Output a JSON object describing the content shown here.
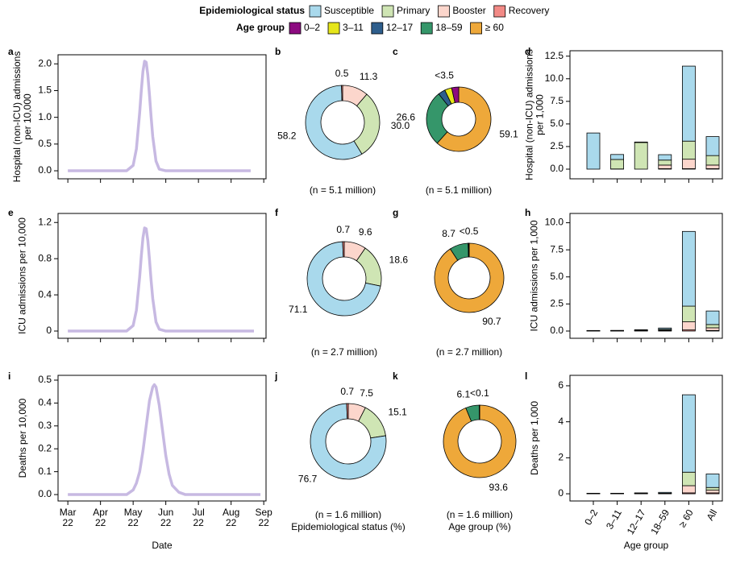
{
  "legend": {
    "epidemiological": {
      "title": "Epidemiological status",
      "items": [
        {
          "name": "Susceptible",
          "color": "#a9d9ec"
        },
        {
          "name": "Primary",
          "color": "#cfe5b4"
        },
        {
          "name": "Booster",
          "color": "#fcd6cc"
        },
        {
          "name": "Recovery",
          "color": "#f28a86"
        }
      ]
    },
    "age": {
      "title": "Age group",
      "items": [
        {
          "name": "0–2",
          "color": "#8c0a80"
        },
        {
          "name": "3–11",
          "color": "#e6e61a"
        },
        {
          "name": "12–17",
          "color": "#2e5e8c"
        },
        {
          "name": "18–59",
          "color": "#35966a"
        },
        {
          "name": "≥ 60",
          "color": "#eea83a"
        }
      ]
    }
  },
  "chart_data": [
    {
      "type": "line",
      "panel_label": "a",
      "ylabel": "Hospital (non-ICU) admissions\nper 10,000",
      "color": "#c7b9e2",
      "x": [
        3.0,
        3.5,
        4.0,
        4.5,
        4.8,
        5.0,
        5.1,
        5.2,
        5.25,
        5.3,
        5.35,
        5.4,
        5.45,
        5.5,
        5.55,
        5.6,
        5.7,
        5.8,
        6.0,
        6.5,
        7.0,
        7.5,
        8.0,
        8.6
      ],
      "values": [
        0,
        0,
        0,
        0,
        0,
        0.1,
        0.41,
        1.09,
        1.5,
        1.86,
        2.05,
        2.03,
        1.79,
        1.42,
        1.01,
        0.64,
        0.18,
        0.03,
        0,
        0,
        0,
        0,
        0,
        0
      ],
      "xlim": [
        2.7,
        9.07
      ],
      "ylim": [
        -0.15,
        2.17
      ],
      "xticks": [
        3,
        4,
        5,
        6,
        7,
        8,
        9
      ],
      "yticks": [
        {
          "value": 0,
          "label": "0.0"
        },
        0.5,
        {
          "value": 1,
          "label": "1.0"
        },
        1.5,
        {
          "value": 2,
          "label": "2.0"
        }
      ]
    },
    {
      "type": "donut",
      "panel_label": "b",
      "group": "epidemiological",
      "values": [
        58.2,
        30.0,
        11.3,
        0.5
      ],
      "value_labels": [
        "58.2",
        "30.0",
        "11.3",
        "0.5"
      ],
      "note": "(n = 5.1 million)"
    },
    {
      "type": "donut",
      "panel_label": "c",
      "group": "age",
      "values": [
        3.4,
        3.4,
        3.4,
        26.6,
        59.1
      ],
      "value_labels": [
        "<3.5",
        null,
        null,
        "26.6",
        "59.1"
      ],
      "note": "(n = 5.1 million)"
    },
    {
      "type": "bar",
      "panel_label": "d",
      "group": "epidemiological",
      "ylabel": "Hospital (non-ICU) admissions\nper 1,000",
      "ylim": [
        -1.07,
        13.1
      ],
      "yticks": [
        {
          "value": 0,
          "label": "0.0"
        },
        2.5,
        {
          "value": 5,
          "label": "5.0"
        },
        7.5,
        {
          "value": 10,
          "label": "10.0"
        },
        12.5
      ],
      "series": [
        {
          "values": [
            4.0,
            0.55,
            0.05,
            0.6,
            8.3,
            2.1
          ]
        },
        {
          "values": [
            0,
            1.05,
            2.95,
            0.55,
            2.0,
            1.05
          ]
        },
        {
          "values": [
            0,
            0.02,
            0,
            0.4,
            1.05,
            0.4
          ]
        },
        {
          "values": [
            0,
            0,
            0,
            0.05,
            0.05,
            0.05
          ]
        }
      ]
    },
    {
      "type": "line",
      "panel_label": "e",
      "ylabel": "ICU admissions per 10,000",
      "color": "#c7b9e2",
      "x": [
        3.0,
        3.5,
        4.0,
        4.5,
        4.8,
        5.0,
        5.1,
        5.2,
        5.25,
        5.3,
        5.35,
        5.4,
        5.45,
        5.5,
        5.55,
        5.6,
        5.7,
        5.8,
        6.0,
        6.5,
        7.0,
        7.5,
        8.0,
        8.7
      ],
      "values": [
        0,
        0,
        0,
        0,
        0,
        0.06,
        0.23,
        0.6,
        0.83,
        1.03,
        1.14,
        1.13,
        1.0,
        0.79,
        0.56,
        0.36,
        0.1,
        0.02,
        0,
        0,
        0,
        0,
        0,
        0
      ],
      "xlim": [
        2.7,
        9.07
      ],
      "ylim": [
        -0.08,
        1.3
      ],
      "xticks": [
        3,
        4,
        5,
        6,
        7,
        8,
        9
      ],
      "yticks": [
        0,
        0.4,
        0.8,
        1.2
      ]
    },
    {
      "type": "donut",
      "panel_label": "f",
      "group": "epidemiological",
      "values": [
        71.1,
        18.6,
        9.6,
        0.7
      ],
      "value_labels": [
        "71.1",
        "18.6",
        "9.6",
        "0.7"
      ],
      "note": "(n = 2.7 million)"
    },
    {
      "type": "donut",
      "panel_label": "g",
      "group": "age",
      "values": [
        0.2,
        0.1,
        0.2,
        8.7,
        90.7
      ],
      "value_labels": [
        "<0.5",
        null,
        null,
        "8.7",
        "90.7"
      ],
      "note": "(n = 2.7 million)"
    },
    {
      "type": "bar",
      "panel_label": "h",
      "group": "epidemiological",
      "ylabel": "ICU admissions per 1,000",
      "ylim": [
        -0.67,
        10.86
      ],
      "yticks": [
        {
          "value": 0,
          "label": "0.0"
        },
        2.5,
        {
          "value": 5,
          "label": "5.0"
        },
        7.5,
        {
          "value": 10,
          "label": "10.0"
        }
      ],
      "series": [
        {
          "values": [
            0.03,
            0.03,
            0.06,
            0.12,
            6.9,
            1.25
          ]
        },
        {
          "values": [
            0.01,
            0.02,
            0.04,
            0.08,
            1.45,
            0.3
          ]
        },
        {
          "values": [
            0.01,
            0.01,
            0.02,
            0.06,
            0.75,
            0.25
          ]
        },
        {
          "values": [
            0,
            0,
            0,
            0.02,
            0.1,
            0.05
          ]
        }
      ]
    },
    {
      "type": "line",
      "panel_label": "i",
      "ylabel": "Deaths per 10,000",
      "xlabel": "Date",
      "color": "#c7b9e2",
      "x": [
        3.0,
        3.5,
        4.0,
        4.5,
        4.8,
        5.0,
        5.1,
        5.2,
        5.3,
        5.4,
        5.5,
        5.6,
        5.65,
        5.7,
        5.8,
        5.9,
        6.0,
        6.1,
        6.2,
        6.4,
        6.6,
        7.0,
        7.5,
        8.0,
        8.5,
        8.9
      ],
      "values": [
        0,
        0,
        0,
        0,
        0,
        0.02,
        0.05,
        0.1,
        0.19,
        0.3,
        0.41,
        0.47,
        0.48,
        0.47,
        0.39,
        0.28,
        0.17,
        0.09,
        0.04,
        0.01,
        0,
        0,
        0,
        0,
        0,
        0
      ],
      "xlim": [
        2.7,
        9.07
      ],
      "ylim": [
        -0.028,
        0.521
      ],
      "xticks": [
        {
          "value": 3,
          "label": "Mar\n22"
        },
        {
          "value": 4,
          "label": "Apr\n22"
        },
        {
          "value": 5,
          "label": "May\n22"
        },
        {
          "value": 6,
          "label": "Jun\n22"
        },
        {
          "value": 7,
          "label": "Jul\n22"
        },
        {
          "value": 8,
          "label": "Aug\n22"
        },
        {
          "value": 9,
          "label": "Sep\n22"
        }
      ],
      "yticks": [
        {
          "value": 0,
          "label": "0.0"
        },
        0.1,
        0.2,
        0.3,
        0.4,
        0.5
      ]
    },
    {
      "type": "donut",
      "panel_label": "j",
      "group": "epidemiological",
      "values": [
        76.7,
        15.1,
        7.5,
        0.7
      ],
      "value_labels": [
        "76.7",
        "15.1",
        "7.5",
        "0.7"
      ],
      "note": "(n = 1.6 million)",
      "xlabel": "Epidemiological status (%)"
    },
    {
      "type": "donut",
      "panel_label": "k",
      "group": "age",
      "values": [
        0.05,
        0.05,
        0.05,
        6.1,
        93.6
      ],
      "value_labels": [
        "<0.1",
        null,
        null,
        "6.1",
        "93.6"
      ],
      "note": "(n = 1.6 million)",
      "xlabel": "Age group (%)"
    },
    {
      "type": "bar",
      "panel_label": "l",
      "group": "epidemiological",
      "ylabel": "Deaths per 1,000",
      "xlabel": "Age group",
      "categories": [
        "0–2",
        "3–11",
        "12–17",
        "18–59",
        "≥ 60",
        "All"
      ],
      "ylim": [
        -0.4,
        6.58
      ],
      "yticks": [
        0,
        2,
        4,
        6
      ],
      "series": [
        {
          "values": [
            0.02,
            0.02,
            0.03,
            0.05,
            4.3,
            0.75
          ]
        },
        {
          "values": [
            0.01,
            0.01,
            0.01,
            0.02,
            0.75,
            0.15
          ]
        },
        {
          "values": [
            0,
            0,
            0.01,
            0.01,
            0.4,
            0.15
          ]
        },
        {
          "values": [
            0,
            0,
            0,
            0,
            0.05,
            0.05
          ]
        }
      ]
    }
  ]
}
